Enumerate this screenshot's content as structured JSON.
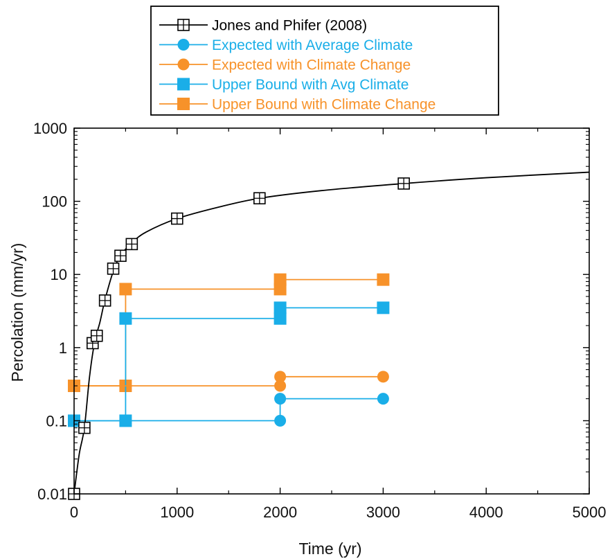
{
  "chart_data": {
    "type": "line",
    "title": "",
    "xlabel": "Time (yr)",
    "ylabel": "Percolation (mm/yr)",
    "xlim": [
      0,
      5000
    ],
    "ylim": [
      0.01,
      1000
    ],
    "yscale": "log",
    "grid": false,
    "legend_position": "top",
    "x_ticks": [
      {
        "value": 0,
        "label": "0"
      },
      {
        "value": 1000,
        "label": "1000"
      },
      {
        "value": 2000,
        "label": "2000"
      },
      {
        "value": 3000,
        "label": "3000"
      },
      {
        "value": 4000,
        "label": "4000"
      },
      {
        "value": 5000,
        "label": "5000"
      }
    ],
    "y_ticks": [
      {
        "value": 0.01,
        "label": "0.01"
      },
      {
        "value": 0.1,
        "label": "0.1"
      },
      {
        "value": 1,
        "label": "1"
      },
      {
        "value": 10,
        "label": "10"
      },
      {
        "value": 100,
        "label": "100"
      },
      {
        "value": 1000,
        "label": "1000"
      }
    ],
    "series": [
      {
        "name": "Jones and Phifer (2008)",
        "color": "#000000",
        "marker": "boxed-plus-square",
        "curve": [
          [
            0,
            0.01
          ],
          [
            50,
            0.035
          ],
          [
            100,
            0.08
          ],
          [
            150,
            0.4
          ],
          [
            200,
            1.2
          ],
          [
            250,
            2.2
          ],
          [
            300,
            4.5
          ],
          [
            380,
            11
          ],
          [
            450,
            18
          ],
          [
            560,
            27
          ],
          [
            700,
            38
          ],
          [
            1000,
            58
          ],
          [
            1400,
            83
          ],
          [
            1800,
            110
          ],
          [
            2400,
            140
          ],
          [
            3200,
            175
          ],
          [
            4000,
            210
          ],
          [
            5000,
            250
          ]
        ],
        "markers": [
          [
            0,
            0.01
          ],
          [
            100,
            0.08
          ],
          [
            180,
            1.15
          ],
          [
            220,
            1.45
          ],
          [
            300,
            4.4
          ],
          [
            380,
            12
          ],
          [
            450,
            18
          ],
          [
            560,
            26
          ],
          [
            1000,
            58
          ],
          [
            1800,
            110
          ],
          [
            3200,
            175
          ]
        ]
      },
      {
        "name": "Expected with Average Climate",
        "color": "#1aaee8",
        "marker": "circle",
        "curve": [
          [
            0,
            0.1
          ],
          [
            2000,
            0.1
          ],
          [
            2000,
            0.2
          ],
          [
            3000,
            0.2
          ]
        ],
        "markers": [
          [
            2000,
            0.1
          ],
          [
            2000,
            0.2
          ],
          [
            3000,
            0.2
          ]
        ]
      },
      {
        "name": "Expected with Climate Change",
        "color": "#f7922a",
        "marker": "circle",
        "curve": [
          [
            0,
            0.3
          ],
          [
            2000,
            0.3
          ],
          [
            2000,
            0.4
          ],
          [
            3000,
            0.4
          ]
        ],
        "markers": [
          [
            2000,
            0.3
          ],
          [
            2000,
            0.4
          ],
          [
            3000,
            0.4
          ]
        ]
      },
      {
        "name": "Upper Bound with Avg Climate",
        "color": "#1aaee8",
        "marker": "square",
        "curve": [
          [
            0,
            0.1
          ],
          [
            500,
            0.1
          ],
          [
            500,
            2.5
          ],
          [
            2000,
            2.5
          ],
          [
            2000,
            3.5
          ],
          [
            3000,
            3.5
          ]
        ],
        "markers": [
          [
            0,
            0.1
          ],
          [
            500,
            0.1
          ],
          [
            500,
            2.5
          ],
          [
            2000,
            2.5
          ],
          [
            2000,
            3.5
          ],
          [
            3000,
            3.5
          ]
        ]
      },
      {
        "name": "Upper Bound with Climate Change",
        "color": "#f7922a",
        "marker": "square",
        "curve": [
          [
            0,
            0.3
          ],
          [
            500,
            0.3
          ],
          [
            500,
            6.3
          ],
          [
            2000,
            6.3
          ],
          [
            2000,
            8.5
          ],
          [
            3000,
            8.5
          ]
        ],
        "markers": [
          [
            0,
            0.3
          ],
          [
            500,
            0.3
          ],
          [
            500,
            6.3
          ],
          [
            2000,
            6.3
          ],
          [
            2000,
            8.5
          ],
          [
            3000,
            8.5
          ]
        ]
      }
    ]
  }
}
